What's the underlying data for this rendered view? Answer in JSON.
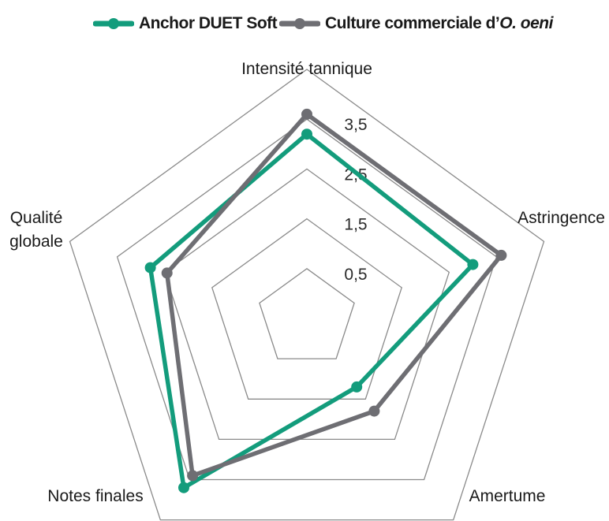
{
  "chart_data": {
    "type": "radar",
    "axes": [
      "Intensité tannique",
      "Astringence",
      "Amertume",
      "Notes finales",
      "Qualité globale"
    ],
    "axis_label_lines": [
      [
        "Intensité tannique"
      ],
      [
        "Astringence"
      ],
      [
        "Amertume"
      ],
      [
        "Notes finales"
      ],
      [
        "Qualité",
        "globale"
      ]
    ],
    "rings": [
      0.5,
      1.5,
      2.5,
      3.5
    ],
    "ring_labels": [
      "0,5",
      "1,5",
      "2,5",
      "3,5"
    ],
    "range": [
      -0.5,
      4.5
    ],
    "grid": true,
    "legend_position": "top",
    "series": [
      {
        "name": "Anchor DUET Soft",
        "color": "#139c7c",
        "values": [
          3.2,
          3.0,
          1.2,
          3.7,
          2.8
        ]
      },
      {
        "name": "Culture commerciale d’O. oeni",
        "name_prefix": "Culture commerciale d’",
        "name_italic": "O. oeni",
        "color": "#6e6e73",
        "values": [
          3.6,
          3.6,
          1.8,
          3.4,
          2.45
        ]
      }
    ]
  }
}
